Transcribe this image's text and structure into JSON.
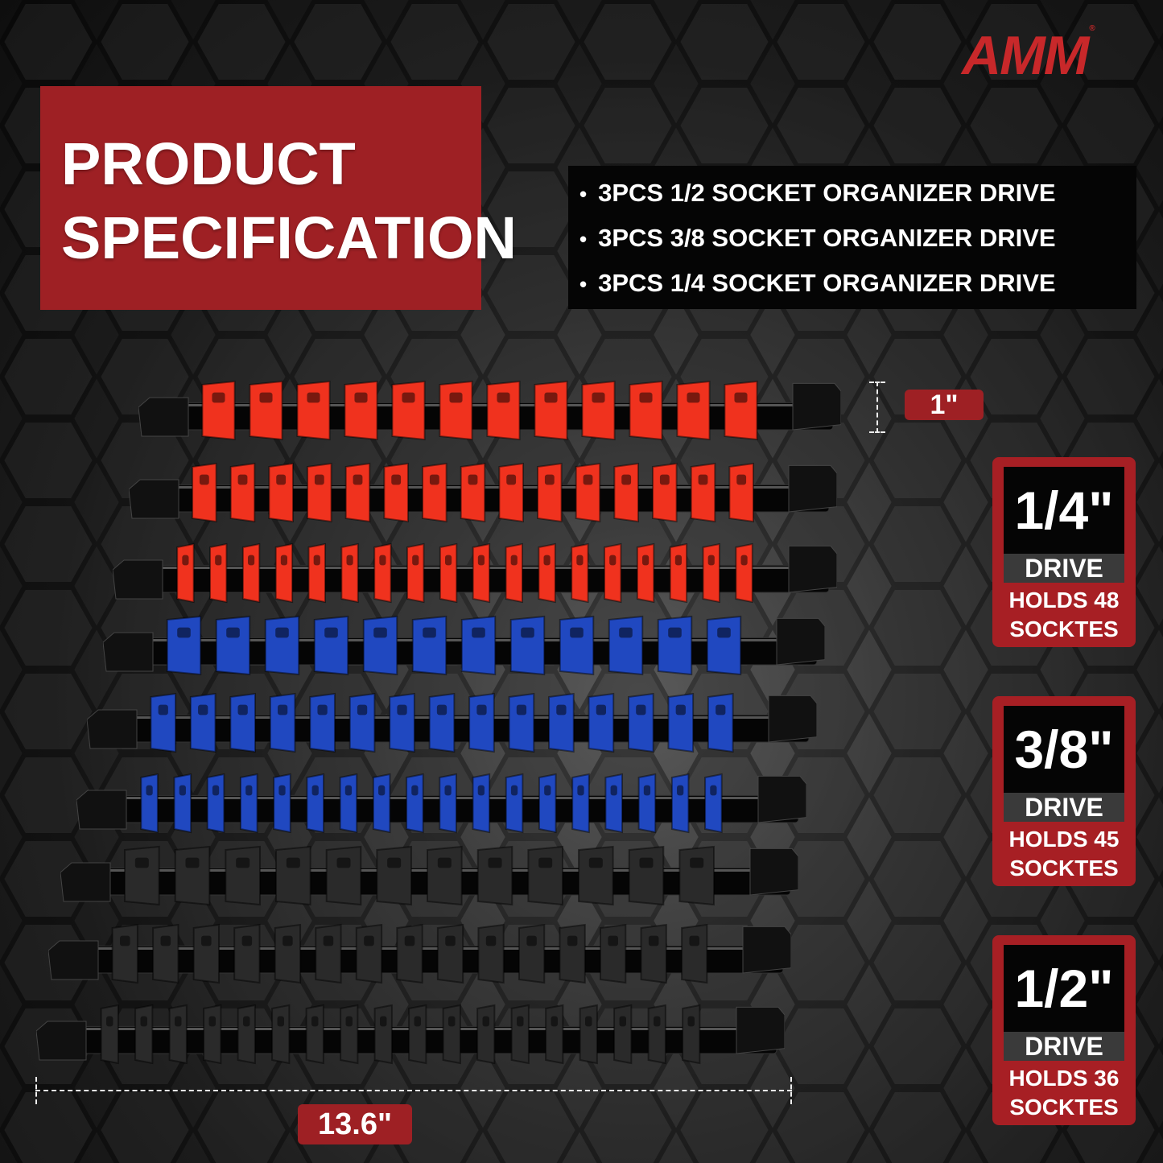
{
  "brand": {
    "logo": "AMM",
    "registered": "®",
    "color": "#c8282a"
  },
  "title": {
    "line1": "PRODUCT",
    "line2": "SPECIFICATION"
  },
  "bullets": [
    "3PCS 1/2 SOCKET ORGANIZER DRIVE",
    "3PCS 3/8 SOCKET ORGANIZER DRIVE",
    "3PCS 1/4 SOCKET ORGANIZER DRIVE"
  ],
  "dimensions": {
    "height": "1\"",
    "length": "13.6\""
  },
  "badges": [
    {
      "size": "1/4\"",
      "drive": "DRIVE",
      "holds_line1": "HOLDS 48",
      "holds_line2": "SOCKTES"
    },
    {
      "size": "3/8\"",
      "drive": "DRIVE",
      "holds_line1": "HOLDS 45",
      "holds_line2": "SOCKTES"
    },
    {
      "size": "1/2\"",
      "drive": "DRIVE",
      "holds_line1": "HOLDS 36",
      "holds_line2": "SOCKTES"
    }
  ],
  "colors": {
    "accent": "#9e2024",
    "red_clips": "#f0321e",
    "blue_clips": "#2048c0",
    "black_clips": "#2a2a2a"
  }
}
